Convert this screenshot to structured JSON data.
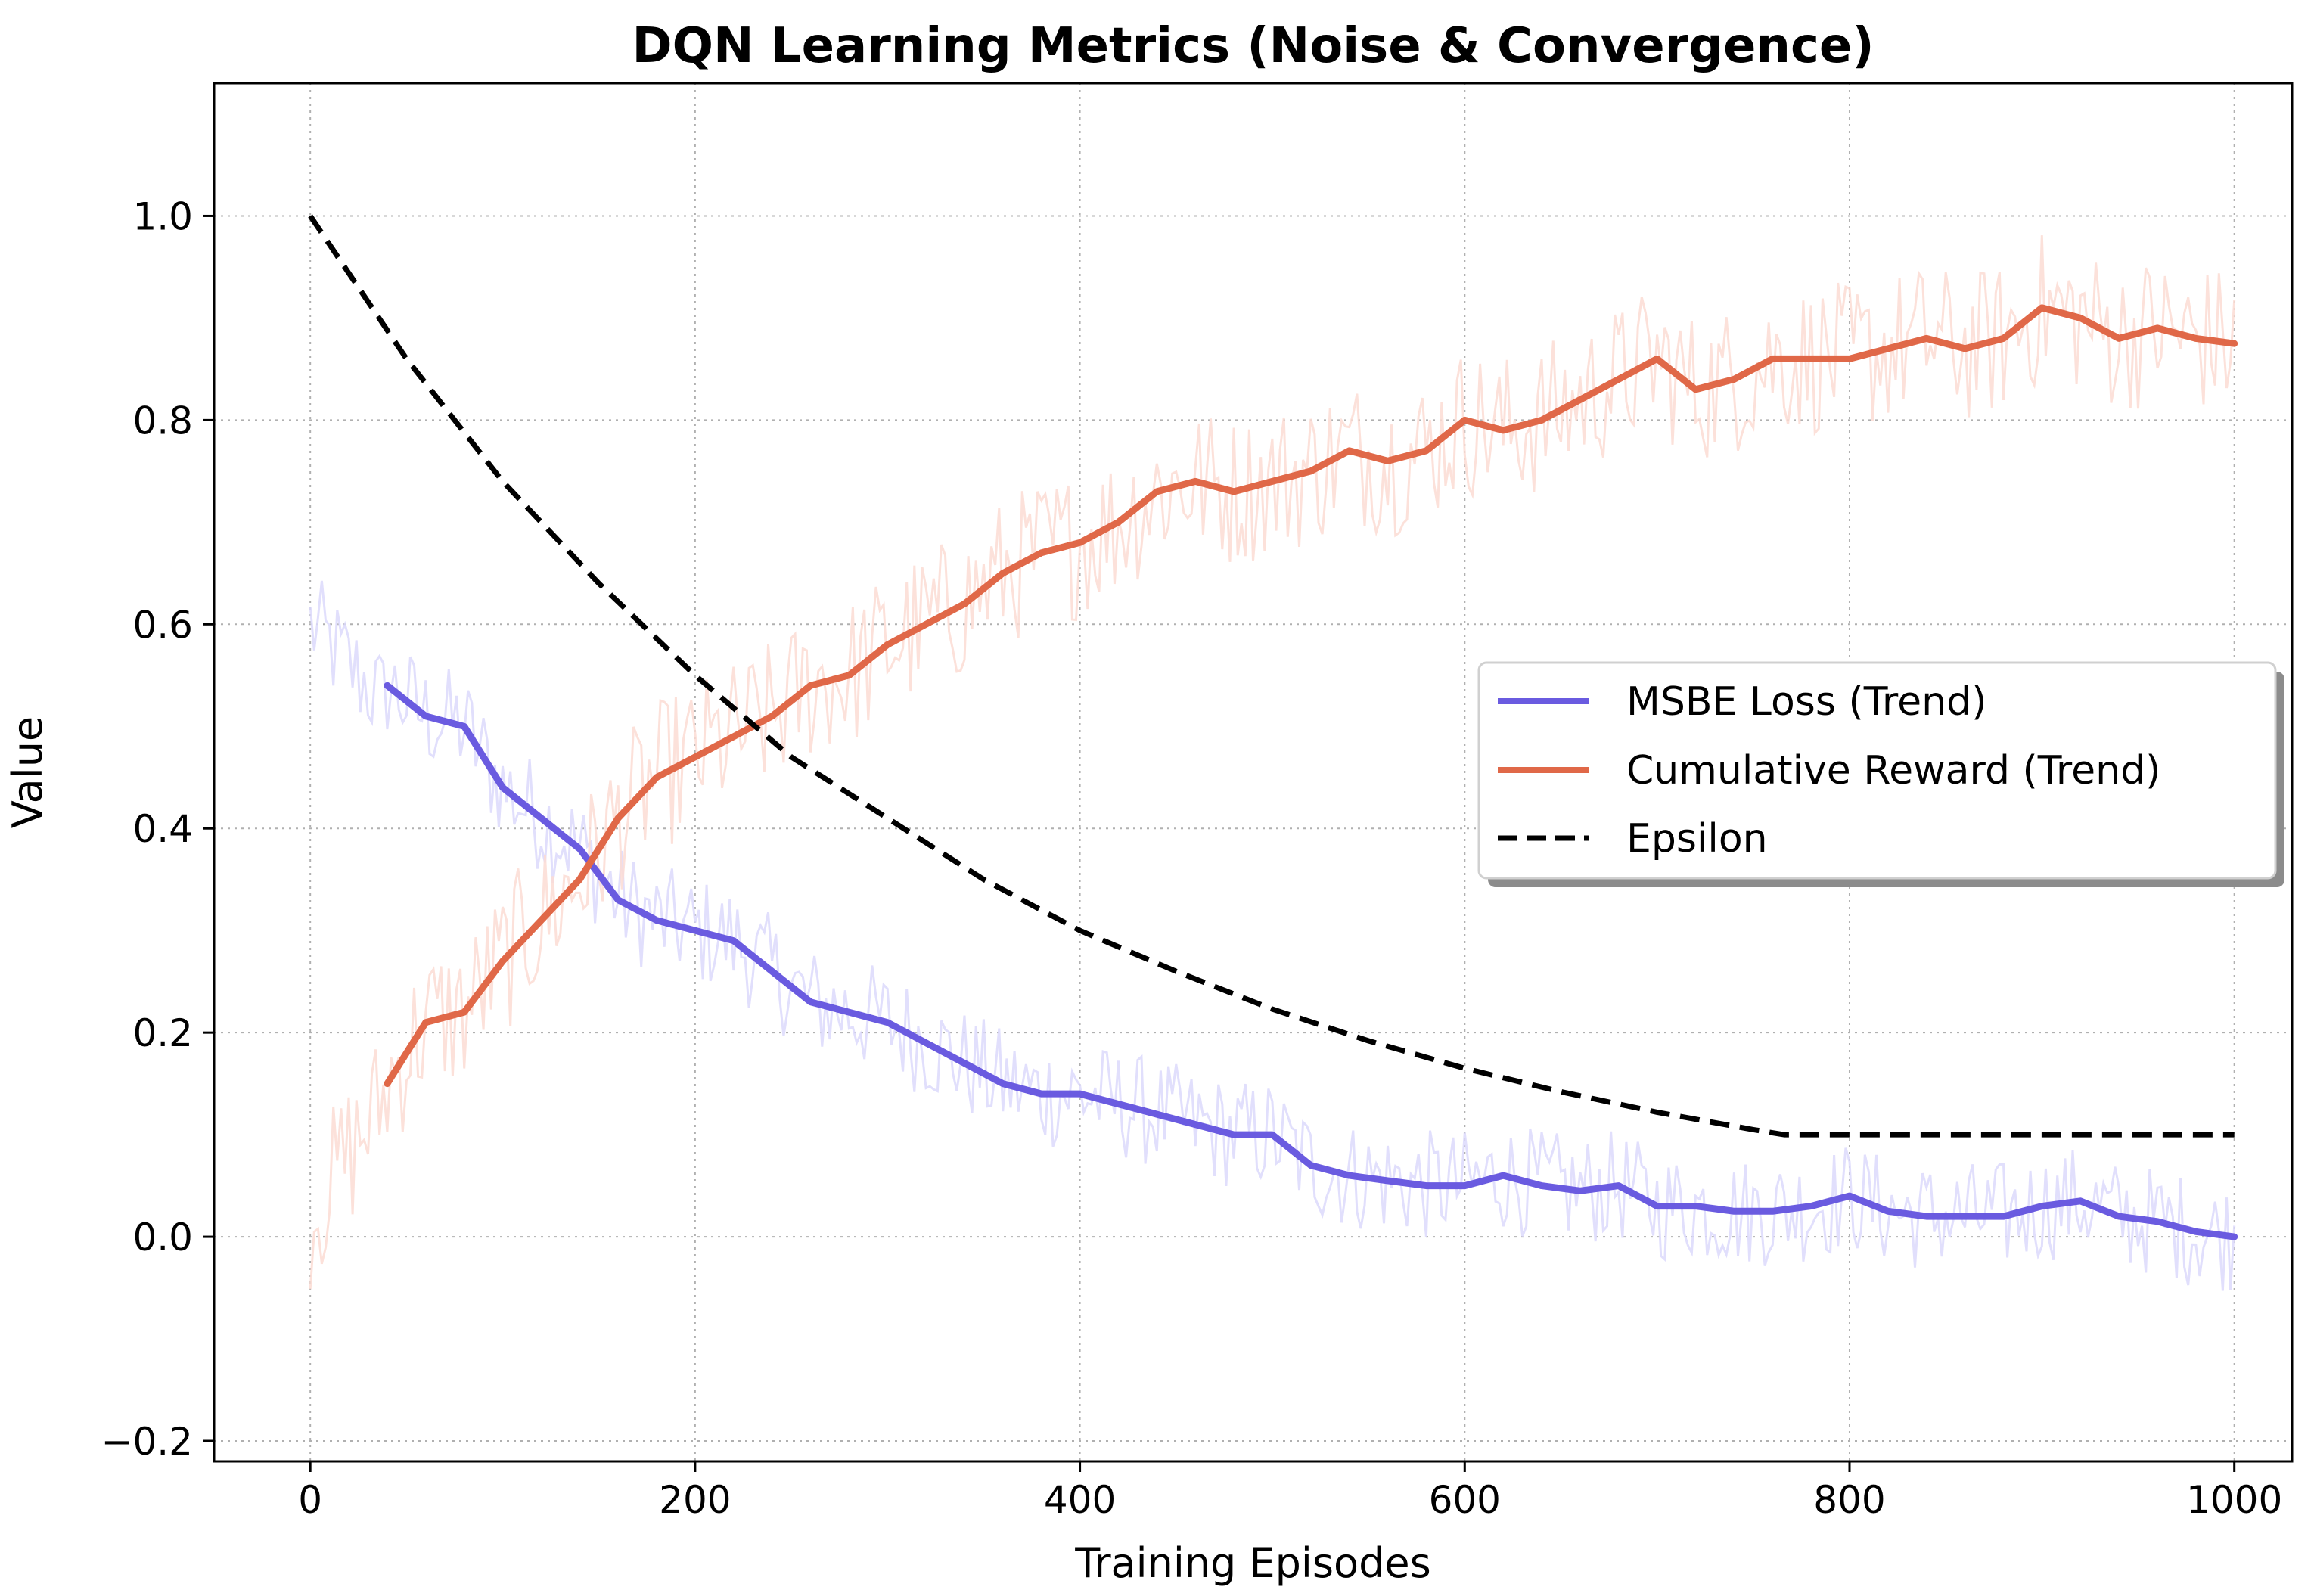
{
  "chart_data": {
    "type": "line",
    "title": "DQN Learning Metrics (Noise & Convergence)",
    "xlabel": "Training Episodes",
    "ylabel": "Value",
    "xlim": [
      -50,
      1030
    ],
    "ylim": [
      -0.22,
      1.13
    ],
    "xticks": [
      0,
      200,
      400,
      600,
      800,
      1000
    ],
    "xtick_labels": [
      "0",
      "200",
      "400",
      "600",
      "800",
      "1000"
    ],
    "yticks": [
      -0.2,
      0.0,
      0.2,
      0.4,
      0.6,
      0.8,
      1.0
    ],
    "ytick_labels": [
      "−0.2",
      "0.0",
      "0.2",
      "0.4",
      "0.6",
      "0.8",
      "1.0"
    ],
    "grid": true,
    "legend_position": "center-right",
    "series": [
      {
        "name": "MSBE Loss (Trend)",
        "color": "#6a5be0",
        "raw_color": "#dcd9fb",
        "style": "solid",
        "x": [
          40,
          60,
          80,
          100,
          120,
          140,
          160,
          180,
          200,
          220,
          240,
          260,
          280,
          300,
          320,
          340,
          360,
          380,
          400,
          420,
          440,
          460,
          480,
          500,
          520,
          540,
          560,
          580,
          600,
          620,
          640,
          660,
          680,
          700,
          720,
          740,
          760,
          780,
          800,
          820,
          840,
          860,
          880,
          900,
          920,
          940,
          960,
          980,
          1000
        ],
        "values": [
          0.54,
          0.51,
          0.5,
          0.44,
          0.41,
          0.38,
          0.33,
          0.31,
          0.3,
          0.29,
          0.26,
          0.23,
          0.22,
          0.21,
          0.19,
          0.17,
          0.15,
          0.14,
          0.14,
          0.13,
          0.12,
          0.11,
          0.1,
          0.1,
          0.07,
          0.06,
          0.055,
          0.05,
          0.05,
          0.06,
          0.05,
          0.045,
          0.05,
          0.03,
          0.03,
          0.025,
          0.025,
          0.03,
          0.04,
          0.025,
          0.02,
          0.02,
          0.02,
          0.03,
          0.035,
          0.02,
          0.015,
          0.005,
          0.0
        ]
      },
      {
        "name": "Cumulative Reward (Trend)",
        "color": "#e06848",
        "raw_color": "#fbdcd3",
        "style": "solid",
        "x": [
          40,
          60,
          80,
          100,
          120,
          140,
          160,
          180,
          200,
          220,
          240,
          260,
          280,
          300,
          320,
          340,
          360,
          380,
          400,
          420,
          440,
          460,
          480,
          500,
          520,
          540,
          560,
          580,
          600,
          620,
          640,
          660,
          680,
          700,
          720,
          740,
          760,
          780,
          800,
          820,
          840,
          860,
          880,
          900,
          920,
          940,
          960,
          980,
          1000
        ],
        "values": [
          0.15,
          0.21,
          0.22,
          0.27,
          0.31,
          0.35,
          0.41,
          0.45,
          0.47,
          0.49,
          0.51,
          0.54,
          0.55,
          0.58,
          0.6,
          0.62,
          0.65,
          0.67,
          0.68,
          0.7,
          0.73,
          0.74,
          0.73,
          0.74,
          0.75,
          0.77,
          0.76,
          0.77,
          0.8,
          0.79,
          0.8,
          0.82,
          0.84,
          0.86,
          0.83,
          0.84,
          0.86,
          0.86,
          0.86,
          0.87,
          0.88,
          0.87,
          0.88,
          0.91,
          0.9,
          0.88,
          0.89,
          0.88,
          0.875
        ]
      },
      {
        "name": "Epsilon",
        "color": "#000000",
        "style": "dashed",
        "x": [
          0,
          50,
          100,
          150,
          200,
          250,
          300,
          350,
          400,
          450,
          500,
          550,
          600,
          650,
          700,
          750,
          766,
          800,
          850,
          900,
          950,
          1000
        ],
        "values": [
          1.0,
          0.86,
          0.74,
          0.64,
          0.55,
          0.47,
          0.41,
          0.35,
          0.3,
          0.26,
          0.223,
          0.192,
          0.165,
          0.142,
          0.122,
          0.105,
          0.1,
          0.1,
          0.1,
          0.1,
          0.1,
          0.1
        ]
      }
    ]
  }
}
